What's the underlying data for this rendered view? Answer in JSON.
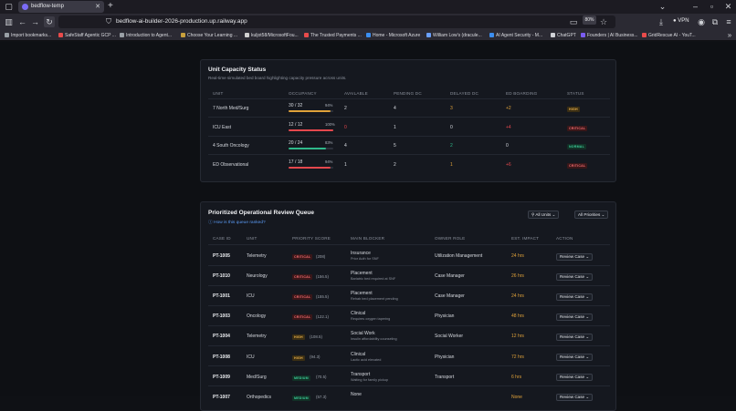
{
  "browser": {
    "tab_title": "bedflow-temp",
    "url": "bedflow-ai-builder-2026-production.up.railway.app",
    "zoom": "80%",
    "vpn_label": "VPN",
    "bookmarks": [
      {
        "label": "Import bookmarks...",
        "color": "#9aa0a6"
      },
      {
        "label": "SafeStaff Agentic GCP ...",
        "color": "#e94b4b"
      },
      {
        "label": "Introduction to Agent...",
        "color": "#9aa0a6"
      },
      {
        "label": "Choose Your Learning ...",
        "color": "#c8a03c"
      },
      {
        "label": "kuljot58/MicrosoftFou...",
        "color": "#d0d0d0"
      },
      {
        "label": "The Trusted Payments ...",
        "color": "#e94b4b"
      },
      {
        "label": "Home - Microsoft Azure",
        "color": "#3b8ef0"
      },
      {
        "label": "William Low's (dracule...",
        "color": "#6aa0ff"
      },
      {
        "label": "AI Agent Security - M...",
        "color": "#3b8ef0"
      },
      {
        "label": "ChatGPT",
        "color": "#cfd1d6"
      },
      {
        "label": "Founders | AI Business...",
        "color": "#7a5cf0"
      },
      {
        "label": "GridRescue AI - YouT...",
        "color": "#e94b4b"
      }
    ]
  },
  "capacity": {
    "title": "Unit Capacity Status",
    "subtitle": "Real-time simulated bed board highlighting capacity pressure across units.",
    "headers": [
      "UNIT",
      "OCCUPANCY",
      "AVAILABLE",
      "PENDING DC",
      "DELAYED DC",
      "ED BOARDING",
      "STATUS"
    ],
    "rows": [
      {
        "unit": "7 North Med/Surg",
        "occ": "30 / 32",
        "pct": "94%",
        "fill": 0.94,
        "bar": "#e0a23a",
        "available": "2",
        "avail_color": "#d6d9df",
        "pending": "4",
        "delayed": "3",
        "delayed_color": "#e0a23a",
        "boarding": "+2",
        "boarding_color": "#e0a23a",
        "status": "HIGH",
        "status_fg": "#e8b04a",
        "status_bg": "#3a2e14"
      },
      {
        "unit": "ICU East",
        "occ": "12 / 12",
        "pct": "100%",
        "fill": 1.0,
        "bar": "#e5484d",
        "available": "0",
        "avail_color": "#e5484d",
        "pending": "1",
        "delayed": "0",
        "delayed_color": "#d6d9df",
        "boarding": "+4",
        "boarding_color": "#e5484d",
        "status": "CRITICAL",
        "status_fg": "#f06a6e",
        "status_bg": "#3a1719"
      },
      {
        "unit": "4 South Oncology",
        "occ": "20 / 24",
        "pct": "83%",
        "fill": 0.83,
        "bar": "#2fb98a",
        "available": "4",
        "avail_color": "#d6d9df",
        "pending": "5",
        "delayed": "2",
        "delayed_color": "#2fb98a",
        "boarding": "0",
        "boarding_color": "#d6d9df",
        "status": "NORMAL",
        "status_fg": "#3ccb98",
        "status_bg": "#123026"
      },
      {
        "unit": "ED Observational",
        "occ": "17 / 18",
        "pct": "94%",
        "fill": 0.94,
        "bar": "#e5484d",
        "available": "1",
        "avail_color": "#d6d9df",
        "pending": "2",
        "delayed": "1",
        "delayed_color": "#e0a23a",
        "boarding": "+6",
        "boarding_color": "#e5484d",
        "status": "CRITICAL",
        "status_fg": "#f06a6e",
        "status_bg": "#3a1719"
      }
    ]
  },
  "queue": {
    "title": "Prioritized Operational Review Queue",
    "help_link": "How is this queue ranked?",
    "filter_units": "All Units",
    "filter_priorities": "All Priorities",
    "headers": [
      "CASE ID",
      "UNIT",
      "PRIORITY SCORE",
      "MAIN BLOCKER",
      "OWNER ROLE",
      "EST. IMPACT",
      "ACTION"
    ],
    "rows": [
      {
        "id": "PT-1005",
        "unit": "Telemetry",
        "level": "CRITICAL",
        "score": "(208)",
        "blocker": "Insurance",
        "detail": "Prior Auth for SNF",
        "owner": "Utilization Management",
        "impact": "24 hrs",
        "action": "Review Case"
      },
      {
        "id": "PT-1010",
        "unit": "Neurology",
        "level": "CRITICAL",
        "score": "(156.5)",
        "blocker": "Placement",
        "detail": "Bariatric bed required at SNF",
        "owner": "Case Manager",
        "impact": "26 hrs",
        "action": "Review Case"
      },
      {
        "id": "PT-1001",
        "unit": "ICU",
        "level": "CRITICAL",
        "score": "(155.5)",
        "blocker": "Placement",
        "detail": "Rehab bed placement pending",
        "owner": "Case Manager",
        "impact": "24 hrs",
        "action": "Review Case"
      },
      {
        "id": "PT-1003",
        "unit": "Oncology",
        "level": "CRITICAL",
        "score": "(122.1)",
        "blocker": "Clinical",
        "detail": "Requires oxygen tapering",
        "owner": "Physician",
        "impact": "48 hrs",
        "action": "Review Case"
      },
      {
        "id": "PT-1004",
        "unit": "Telemetry",
        "level": "HIGH",
        "score": "(108.5)",
        "blocker": "Social Work",
        "detail": "Insulin affordability counseling",
        "owner": "Social Worker",
        "impact": "12 hrs",
        "action": "Review Case"
      },
      {
        "id": "PT-1008",
        "unit": "ICU",
        "level": "HIGH",
        "score": "(94.3)",
        "blocker": "Clinical",
        "detail": "Lactic acid elevated",
        "owner": "Physician",
        "impact": "72 hrs",
        "action": "Review Case"
      },
      {
        "id": "PT-1009",
        "unit": "Med/Surg",
        "level": "MEDIUM",
        "score": "(70.5)",
        "blocker": "Transport",
        "detail": "Waiting for family pickup",
        "owner": "Transport",
        "impact": "6 hrs",
        "action": "Review Case"
      },
      {
        "id": "PT-1007",
        "unit": "Orthopedics",
        "level": "MEDIUM",
        "score": "(57.3)",
        "blocker": "None",
        "detail": "",
        "owner": "",
        "impact": "None",
        "action": "Review Case"
      }
    ],
    "level_styles": {
      "CRITICAL": {
        "fg": "#f06a6e",
        "bg": "#3a1719"
      },
      "HIGH": {
        "fg": "#e8b04a",
        "bg": "#3a2e14"
      },
      "MEDIUM": {
        "fg": "#3ccb98",
        "bg": "#123026"
      }
    }
  }
}
